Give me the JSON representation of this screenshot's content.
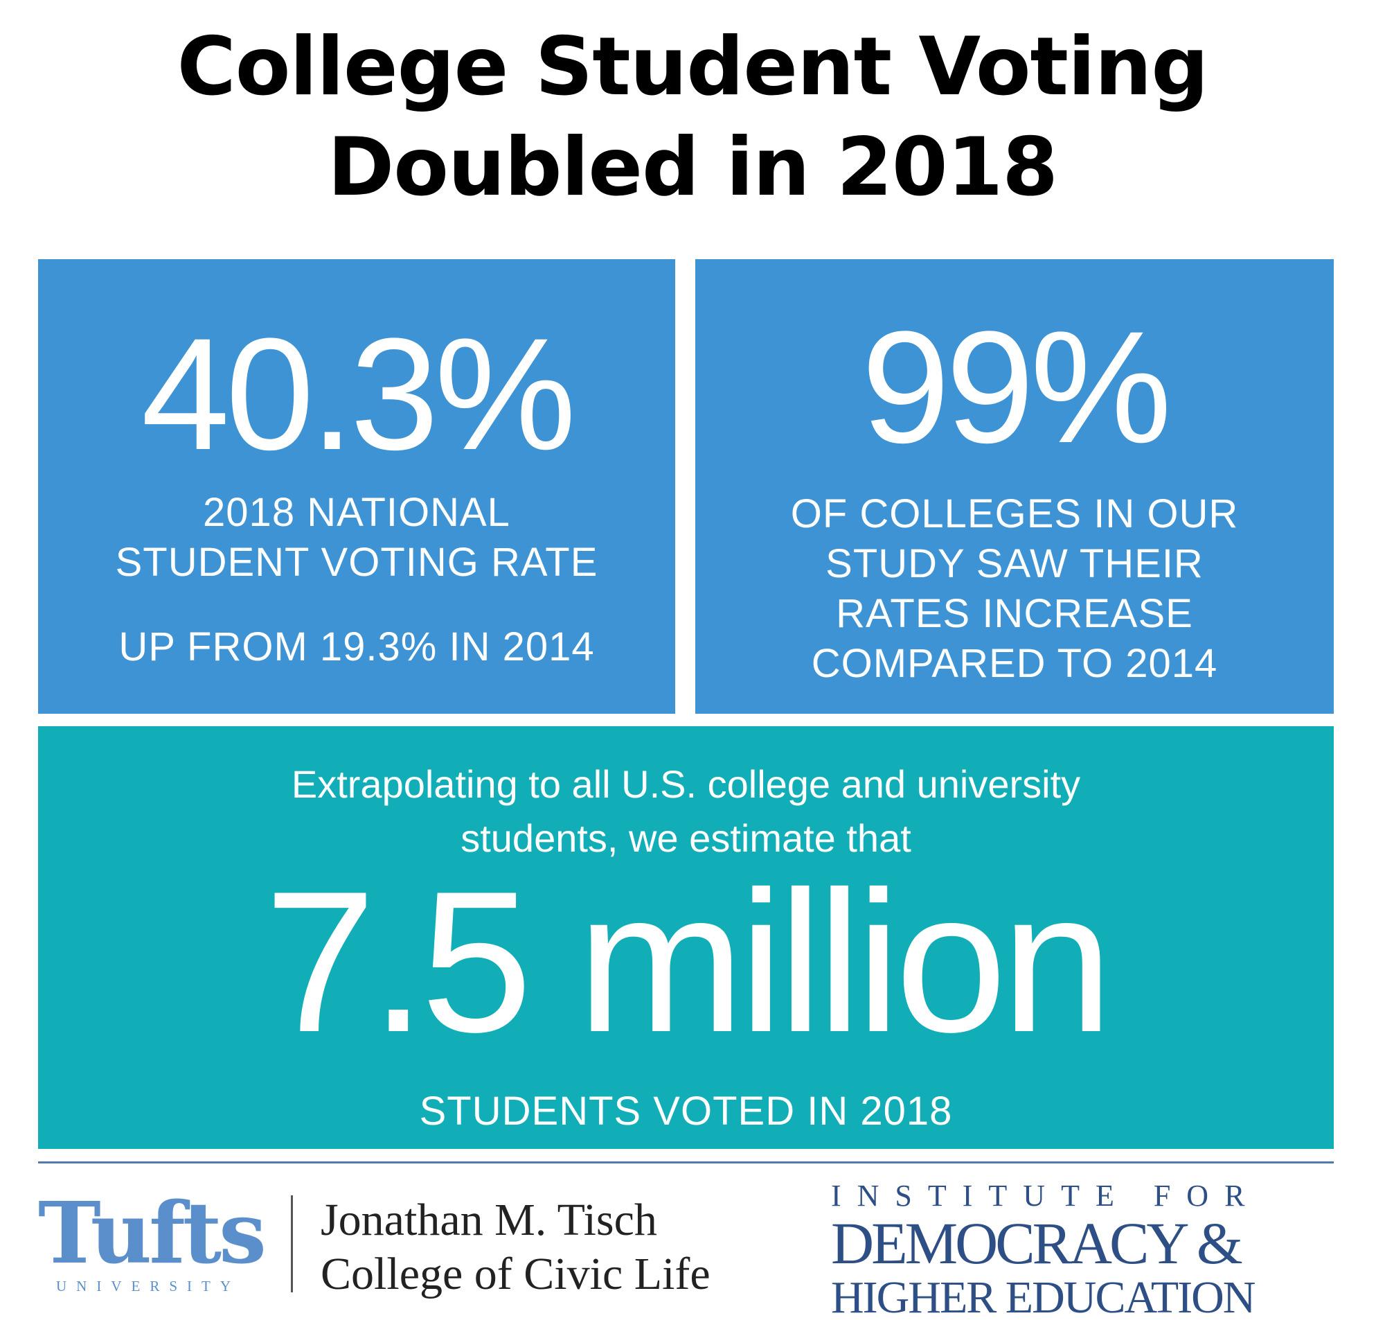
{
  "title": {
    "line1": "College Student Voting",
    "line2": "Doubled in 2018"
  },
  "stat_national": {
    "value": "40.3%",
    "caption_line1": "2018 NATIONAL",
    "caption_line2": "STUDENT VOTING RATE",
    "note": "UP FROM 19.3% IN 2014"
  },
  "stat_colleges": {
    "value": "99%",
    "caption_line1": "OF COLLEGES IN OUR",
    "caption_line2": "STUDY SAW THEIR",
    "caption_line3": "RATES INCREASE",
    "caption_line4": "COMPARED TO 2014"
  },
  "stat_total": {
    "lead_line1": "Extrapolating to all U.S. college and university",
    "lead_line2": "students, we estimate that",
    "value": "7.5 million",
    "caption": "STUDENTS VOTED IN 2018"
  },
  "footer": {
    "tufts_wordmark": "Tufts",
    "tufts_sub": "UNIVERSITY",
    "tisch_line1": "Jonathan M. Tisch",
    "tisch_line2": "College of Civic Life",
    "idhe_line1": "INSTITUTE FOR",
    "idhe_line2": "DEMOCRACY &",
    "idhe_line3": "HIGHER EDUCATION"
  },
  "colors": {
    "blue_panel": "#3d93d3",
    "teal_panel": "#12aeb8",
    "tufts_blue": "#5a8fcc",
    "idhe_navy": "#2d4f85"
  }
}
